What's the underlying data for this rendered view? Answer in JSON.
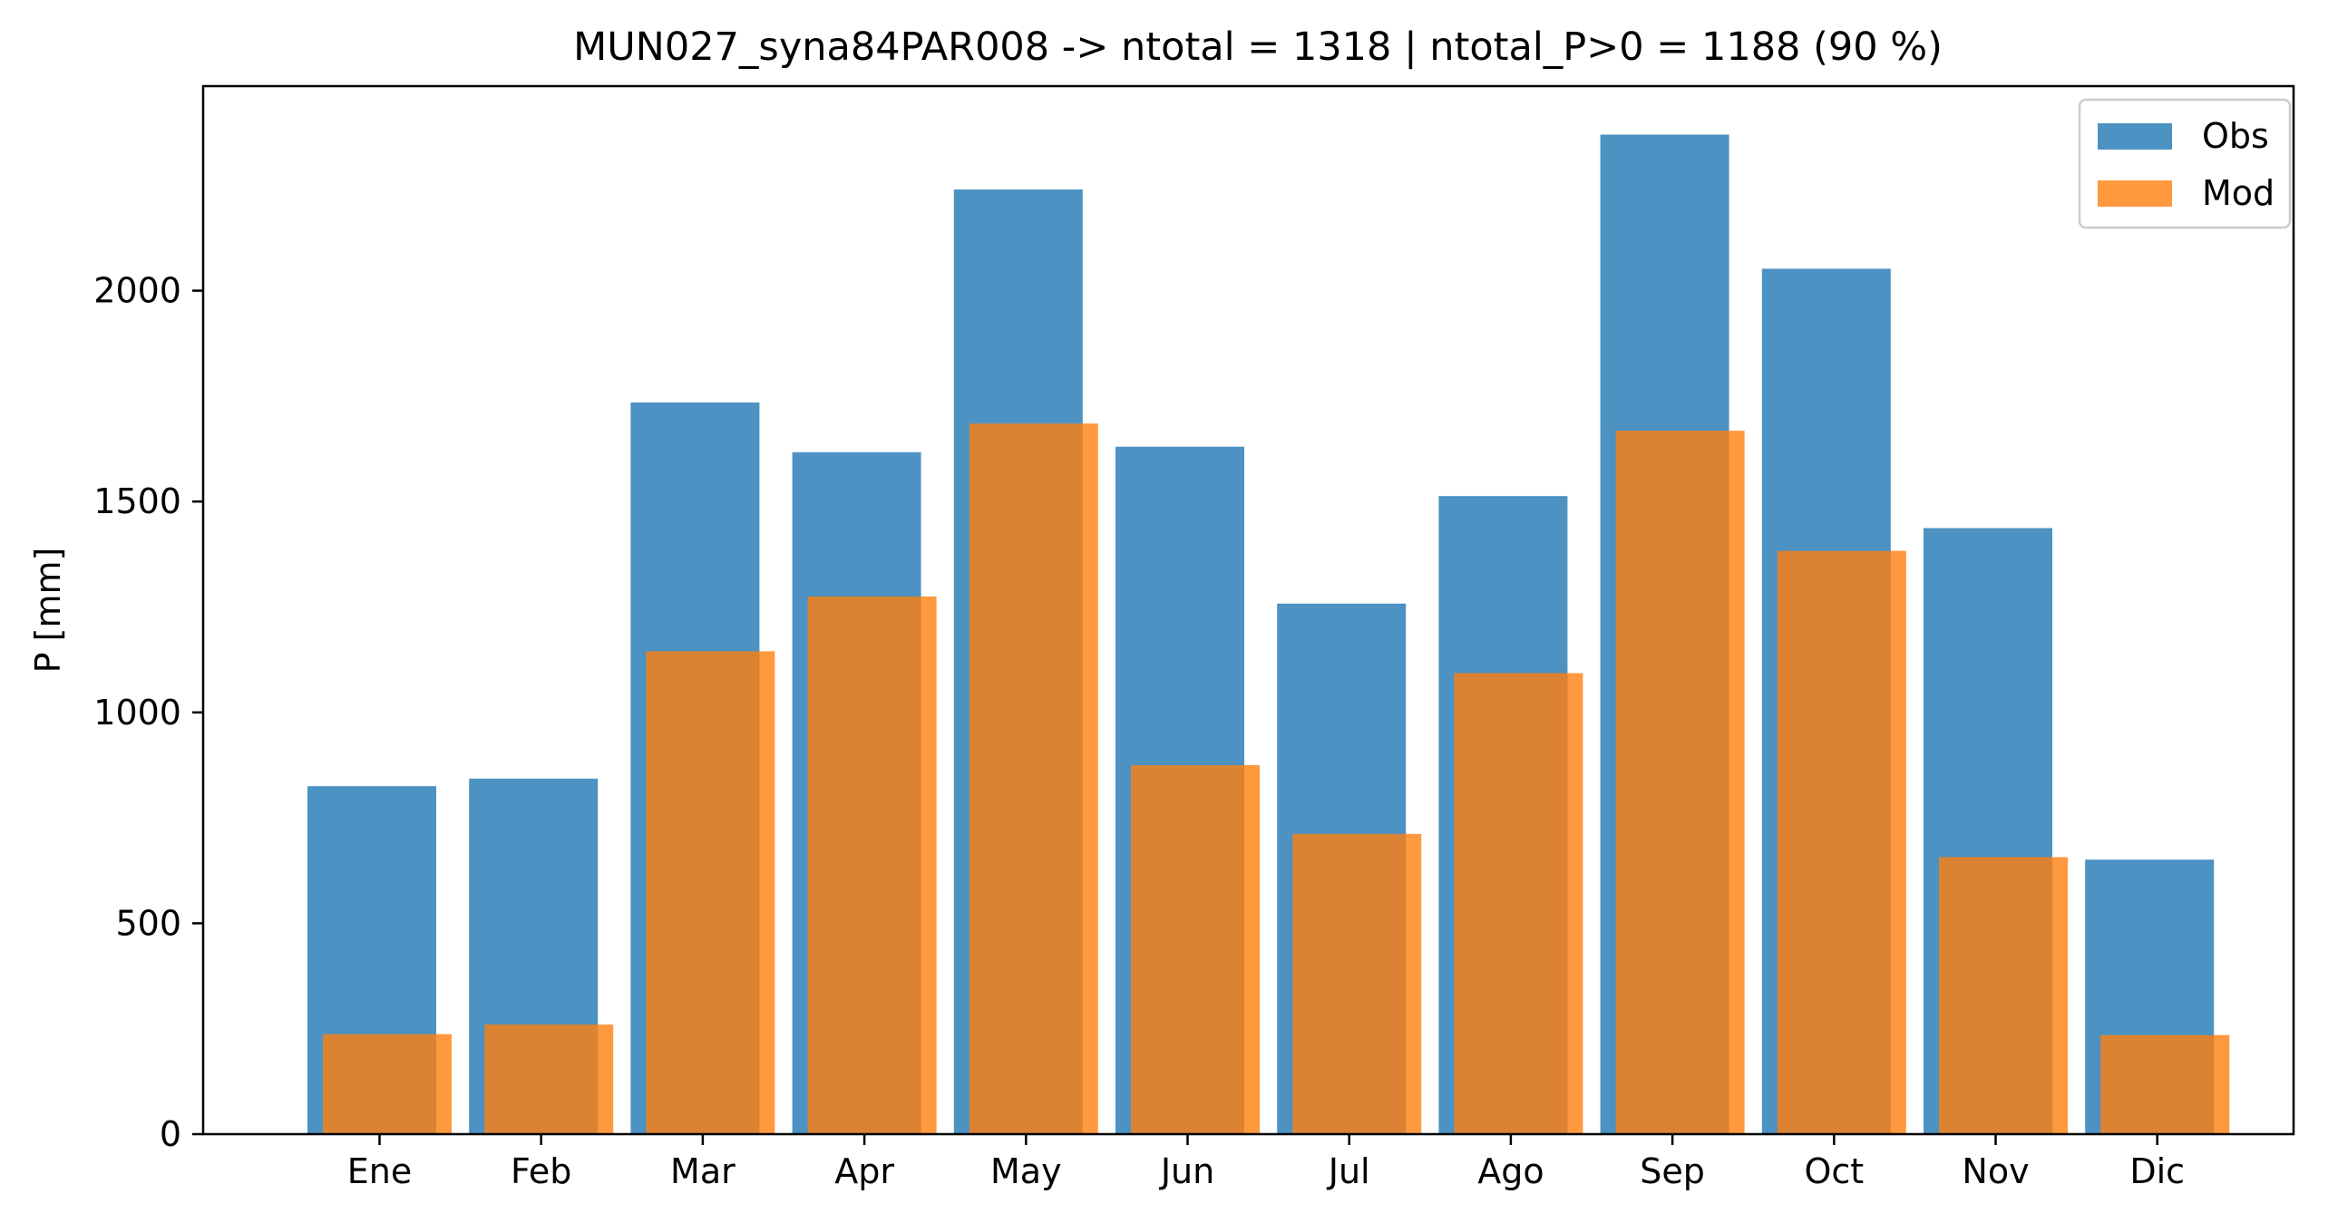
{
  "chart_data": {
    "type": "bar",
    "title": "MUN027_syna84PAR008 -> ntotal = 1318 | ntotal_P>0 = 1188 (90 %)",
    "xlabel": "",
    "ylabel": "P [mm]",
    "categories": [
      "Ene",
      "Feb",
      "Mar",
      "Apr",
      "May",
      "Jun",
      "Jul",
      "Ago",
      "Sep",
      "Oct",
      "Nov",
      "Dic"
    ],
    "series": [
      {
        "name": "Obs",
        "color": "#1f77b4",
        "opacity": 0.8,
        "values": [
          825,
          843,
          1735,
          1617,
          2240,
          1630,
          1258,
          1513,
          2370,
          2052,
          1437,
          651
        ]
      },
      {
        "name": "Mod",
        "color": "#ff7f0e",
        "opacity": 0.8,
        "values": [
          237,
          260,
          1145,
          1275,
          1685,
          875,
          712,
          1093,
          1668,
          1383,
          657,
          235
        ]
      }
    ],
    "yticks": [
      0,
      500,
      1000,
      1500,
      2000
    ],
    "ylim": [
      0,
      2485
    ],
    "grid": false,
    "legend_position": "top-right"
  }
}
